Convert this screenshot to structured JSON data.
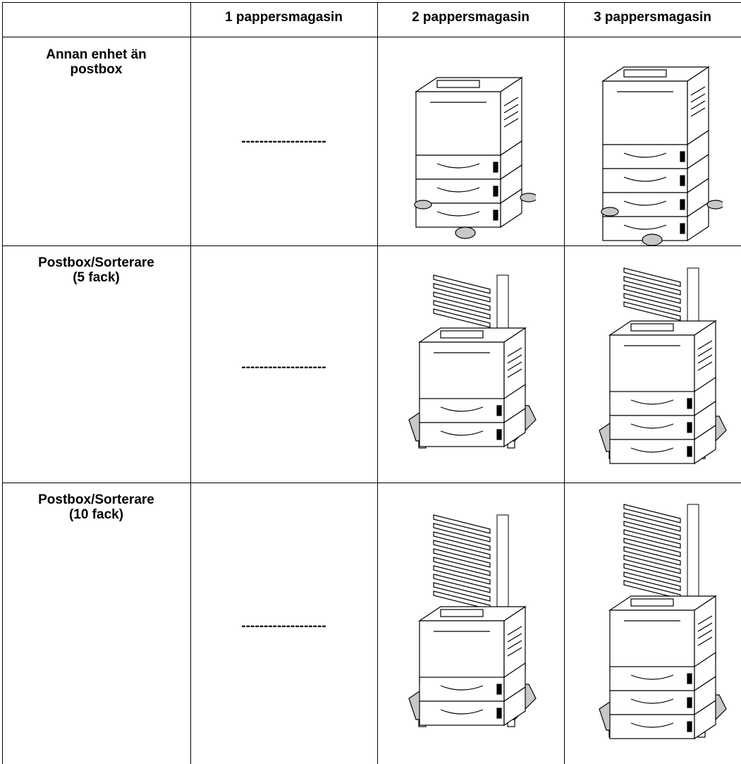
{
  "table": {
    "header": [
      "1 pappersmagasin",
      "2 pappersmagasin",
      "3 pappersmagasin"
    ],
    "rows": [
      {
        "label": "Annan enhet än\npostbox",
        "cells": [
          "-------------------"
        ]
      },
      {
        "label": "Postbox/Sorterare\n(5 fack)",
        "cells": [
          "-------------------"
        ]
      },
      {
        "label": "Postbox/Sorterare\n(10 fack)",
        "cells": [
          "-------------------"
        ]
      }
    ]
  }
}
